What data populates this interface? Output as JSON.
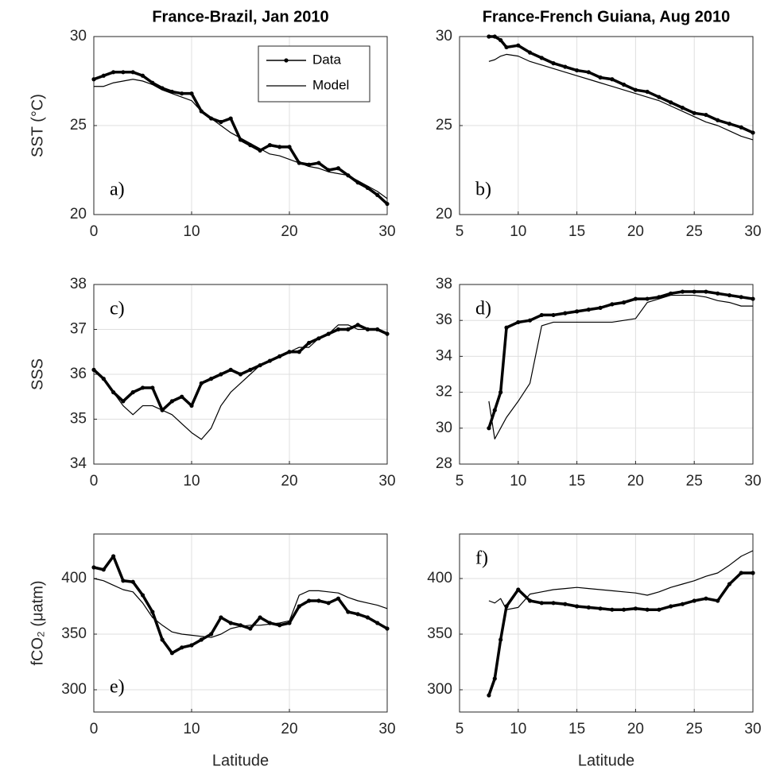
{
  "chart_data": [
    {
      "type": "line",
      "title": "France-Brazil, Jan 2010",
      "ylabel": "SST (°C)",
      "panel_label": "a)",
      "label_corner": "lower left",
      "legend": "upper right",
      "grid": true,
      "xlim": [
        0,
        30
      ],
      "xticks": [
        0,
        10,
        20,
        30
      ],
      "ylim": [
        20,
        30
      ],
      "yticks": [
        20,
        25,
        30
      ],
      "x": [
        0,
        1,
        2,
        3,
        4,
        5,
        6,
        7,
        8,
        9,
        10,
        11,
        12,
        13,
        14,
        15,
        16,
        17,
        18,
        19,
        20,
        21,
        22,
        23,
        24,
        25,
        26,
        27,
        28,
        29,
        30
      ],
      "series": [
        {
          "name": "Data",
          "color": "#000000",
          "values": [
            27.6,
            27.8,
            28.0,
            28.0,
            28.0,
            27.8,
            27.4,
            27.1,
            26.9,
            26.8,
            26.8,
            25.8,
            25.4,
            25.2,
            25.4,
            24.2,
            23.9,
            23.6,
            23.9,
            23.8,
            23.8,
            22.9,
            22.8,
            22.9,
            22.5,
            22.6,
            22.2,
            21.8,
            21.5,
            21.1,
            20.6
          ]
        },
        {
          "name": "Model",
          "color": "#000000",
          "values": [
            27.2,
            27.2,
            27.4,
            27.5,
            27.6,
            27.5,
            27.3,
            27.0,
            26.8,
            26.6,
            26.4,
            25.8,
            25.4,
            25.0,
            24.6,
            24.3,
            24.0,
            23.7,
            23.4,
            23.3,
            23.1,
            22.9,
            22.7,
            22.6,
            22.4,
            22.3,
            22.2,
            21.9,
            21.6,
            21.3,
            20.9
          ]
        }
      ]
    },
    {
      "type": "line",
      "title": "France-French Guiana, Aug 2010",
      "panel_label": "b)",
      "label_corner": "lower left",
      "grid": true,
      "xlim": [
        5,
        30
      ],
      "xticks": [
        5,
        10,
        15,
        20,
        25,
        30
      ],
      "ylim": [
        20,
        30
      ],
      "yticks": [
        20,
        25,
        30
      ],
      "x": [
        7.5,
        8,
        8.5,
        9,
        10,
        11,
        12,
        13,
        14,
        15,
        16,
        17,
        18,
        19,
        20,
        21,
        22,
        23,
        24,
        25,
        26,
        27,
        28,
        29,
        30
      ],
      "series": [
        {
          "name": "Data",
          "color": "#000000",
          "values": [
            30.0,
            30.0,
            29.8,
            29.4,
            29.5,
            29.1,
            28.8,
            28.5,
            28.3,
            28.1,
            28.0,
            27.7,
            27.6,
            27.3,
            27.0,
            26.9,
            26.6,
            26.3,
            26.0,
            25.7,
            25.6,
            25.3,
            25.1,
            24.9,
            24.6
          ]
        },
        {
          "name": "Model",
          "color": "#000000",
          "values": [
            28.6,
            28.7,
            28.9,
            29.0,
            28.9,
            28.6,
            28.4,
            28.2,
            28.0,
            27.8,
            27.6,
            27.4,
            27.2,
            27.0,
            26.8,
            26.6,
            26.4,
            26.1,
            25.8,
            25.5,
            25.2,
            25.0,
            24.7,
            24.4,
            24.2
          ]
        }
      ]
    },
    {
      "type": "line",
      "ylabel": "SSS",
      "panel_label": "c)",
      "label_corner": "upper left",
      "grid": true,
      "xlim": [
        0,
        30
      ],
      "xticks": [
        0,
        10,
        20,
        30
      ],
      "ylim": [
        34,
        38
      ],
      "yticks": [
        34,
        35,
        36,
        37,
        38
      ],
      "x": [
        0,
        1,
        2,
        3,
        4,
        5,
        6,
        7,
        8,
        9,
        10,
        11,
        12,
        13,
        14,
        15,
        16,
        17,
        18,
        19,
        20,
        21,
        22,
        23,
        24,
        25,
        26,
        27,
        28,
        29,
        30
      ],
      "series": [
        {
          "name": "Data",
          "color": "#000000",
          "values": [
            36.1,
            35.9,
            35.6,
            35.4,
            35.6,
            35.7,
            35.7,
            35.2,
            35.4,
            35.5,
            35.3,
            35.8,
            35.9,
            36.0,
            36.1,
            36.0,
            36.1,
            36.2,
            36.3,
            36.4,
            36.5,
            36.5,
            36.7,
            36.8,
            36.9,
            37.0,
            37.0,
            37.1,
            37.0,
            37.0,
            36.9
          ]
        },
        {
          "name": "Model",
          "color": "#000000",
          "values": [
            36.1,
            35.9,
            35.6,
            35.3,
            35.1,
            35.3,
            35.3,
            35.2,
            35.1,
            34.9,
            34.7,
            34.55,
            34.8,
            35.3,
            35.6,
            35.8,
            36.0,
            36.2,
            36.3,
            36.4,
            36.5,
            36.6,
            36.6,
            36.8,
            36.9,
            37.1,
            37.1,
            37.0,
            37.0,
            37.0,
            36.9
          ]
        }
      ]
    },
    {
      "type": "line",
      "panel_label": "d)",
      "label_corner": "upper left",
      "grid": true,
      "xlim": [
        5,
        30
      ],
      "xticks": [
        5,
        10,
        15,
        20,
        25,
        30
      ],
      "ylim": [
        28,
        38
      ],
      "yticks": [
        28,
        30,
        32,
        34,
        36,
        38
      ],
      "x": [
        7.5,
        8,
        8.5,
        9,
        10,
        11,
        12,
        13,
        14,
        15,
        16,
        17,
        18,
        19,
        20,
        21,
        22,
        23,
        24,
        25,
        26,
        27,
        28,
        29,
        30
      ],
      "series": [
        {
          "name": "Data",
          "color": "#000000",
          "values": [
            30.0,
            31.0,
            32.0,
            35.6,
            35.9,
            36.0,
            36.3,
            36.3,
            36.4,
            36.5,
            36.6,
            36.7,
            36.9,
            37.0,
            37.2,
            37.2,
            37.3,
            37.5,
            37.6,
            37.6,
            37.6,
            37.5,
            37.4,
            37.3,
            37.2
          ]
        },
        {
          "name": "Model",
          "color": "#000000",
          "values": [
            31.5,
            29.4,
            30.0,
            30.6,
            31.5,
            32.5,
            35.7,
            35.9,
            35.9,
            35.9,
            35.9,
            35.9,
            35.9,
            36.0,
            36.1,
            37.0,
            37.2,
            37.4,
            37.4,
            37.4,
            37.3,
            37.1,
            37.0,
            36.8,
            36.8
          ]
        }
      ]
    },
    {
      "type": "line",
      "ylabel": "fCO₂ (μatm)",
      "xlabel": "Latitude",
      "panel_label": "e)",
      "label_corner": "lower left",
      "grid": true,
      "xlim": [
        0,
        30
      ],
      "xticks": [
        0,
        10,
        20,
        30
      ],
      "ylim": [
        280,
        440
      ],
      "yticks": [
        300,
        350,
        400
      ],
      "x": [
        0,
        1,
        2,
        3,
        4,
        5,
        6,
        7,
        8,
        9,
        10,
        11,
        12,
        13,
        14,
        15,
        16,
        17,
        18,
        19,
        20,
        21,
        22,
        23,
        24,
        25,
        26,
        27,
        28,
        29,
        30
      ],
      "series": [
        {
          "name": "Data",
          "color": "#000000",
          "values": [
            410,
            408,
            420,
            398,
            397,
            385,
            370,
            345,
            333,
            338,
            340,
            345,
            350,
            365,
            360,
            358,
            355,
            365,
            360,
            358,
            360,
            375,
            380,
            380,
            378,
            382,
            370,
            368,
            365,
            360,
            355
          ]
        },
        {
          "name": "Model",
          "color": "#000000",
          "values": [
            400,
            398,
            394,
            390,
            388,
            378,
            365,
            358,
            352,
            350,
            349,
            348,
            347,
            350,
            355,
            357,
            358,
            358,
            359,
            360,
            362,
            385,
            389,
            389,
            388,
            387,
            383,
            380,
            378,
            376,
            373
          ]
        }
      ]
    },
    {
      "type": "line",
      "xlabel": "Latitude",
      "panel_label": "f)",
      "label_corner": "upper left",
      "grid": true,
      "xlim": [
        5,
        30
      ],
      "xticks": [
        5,
        10,
        15,
        20,
        25,
        30
      ],
      "ylim": [
        280,
        440
      ],
      "yticks": [
        300,
        350,
        400
      ],
      "x": [
        7.5,
        8,
        8.5,
        9,
        10,
        11,
        12,
        13,
        14,
        15,
        16,
        17,
        18,
        19,
        20,
        21,
        22,
        23,
        24,
        25,
        26,
        27,
        28,
        29,
        30
      ],
      "series": [
        {
          "name": "Data",
          "color": "#000000",
          "values": [
            295,
            310,
            345,
            375,
            390,
            380,
            378,
            378,
            377,
            375,
            374,
            373,
            372,
            372,
            373,
            372,
            372,
            375,
            377,
            380,
            382,
            380,
            395,
            405,
            405
          ]
        },
        {
          "name": "Model",
          "color": "#000000",
          "values": [
            380,
            378,
            382,
            372,
            374,
            386,
            388,
            390,
            391,
            392,
            391,
            390,
            389,
            388,
            387,
            385,
            388,
            392,
            395,
            398,
            402,
            405,
            412,
            420,
            425
          ]
        }
      ]
    }
  ]
}
